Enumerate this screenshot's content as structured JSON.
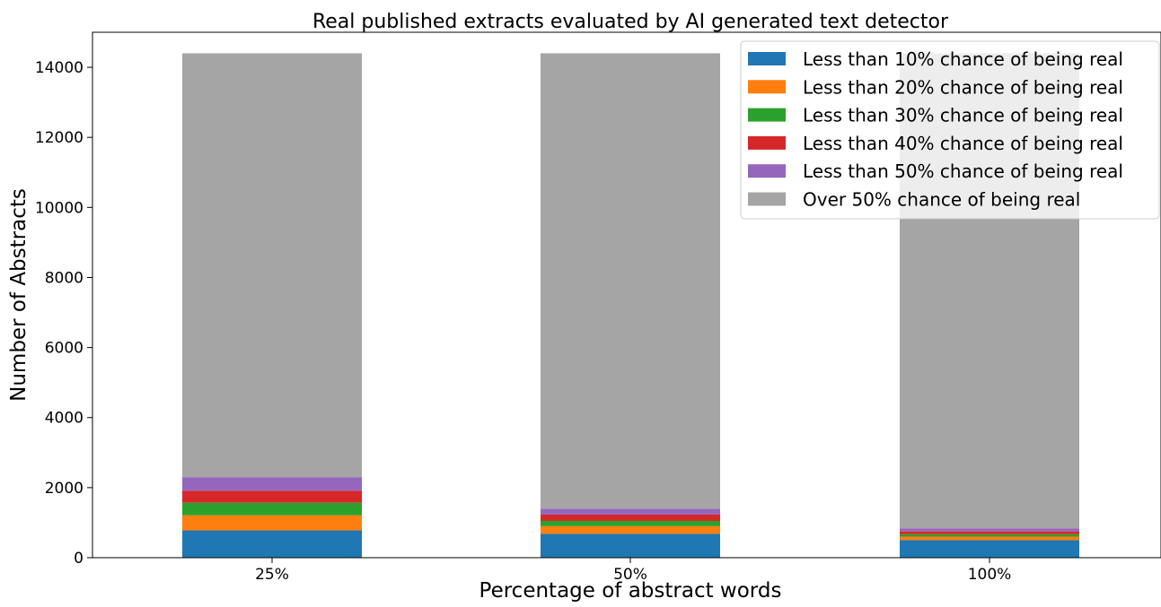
{
  "chart_data": {
    "type": "bar",
    "stacked": true,
    "title": "Real published extracts evaluated by AI generated text detector",
    "xlabel": "Percentage of abstract words",
    "ylabel": "Number of Abstracts",
    "categories": [
      "25%",
      "50%",
      "100%"
    ],
    "ylim": [
      0,
      15000
    ],
    "yticks": [
      0,
      2000,
      4000,
      6000,
      8000,
      10000,
      12000,
      14000
    ],
    "grid": false,
    "legend_position": "top-right",
    "series": [
      {
        "name": "Less than 10% chance of being real",
        "color": "#1f77b4",
        "values": [
          780,
          680,
          500
        ]
      },
      {
        "name": "Less than 20% chance of being real",
        "color": "#ff7f0e",
        "values": [
          430,
          220,
          100
        ]
      },
      {
        "name": "Less than 30% chance of being real",
        "color": "#2ca02c",
        "values": [
          360,
          150,
          70
        ]
      },
      {
        "name": "Less than 40% chance of being real",
        "color": "#d62728",
        "values": [
          340,
          180,
          80
        ]
      },
      {
        "name": "Less than 50% chance of being real",
        "color": "#9467bd",
        "values": [
          390,
          170,
          90
        ]
      },
      {
        "name": "Over 50% chance of being real",
        "color": "#a5a5a5",
        "values": [
          12100,
          13000,
          13560
        ]
      }
    ]
  }
}
